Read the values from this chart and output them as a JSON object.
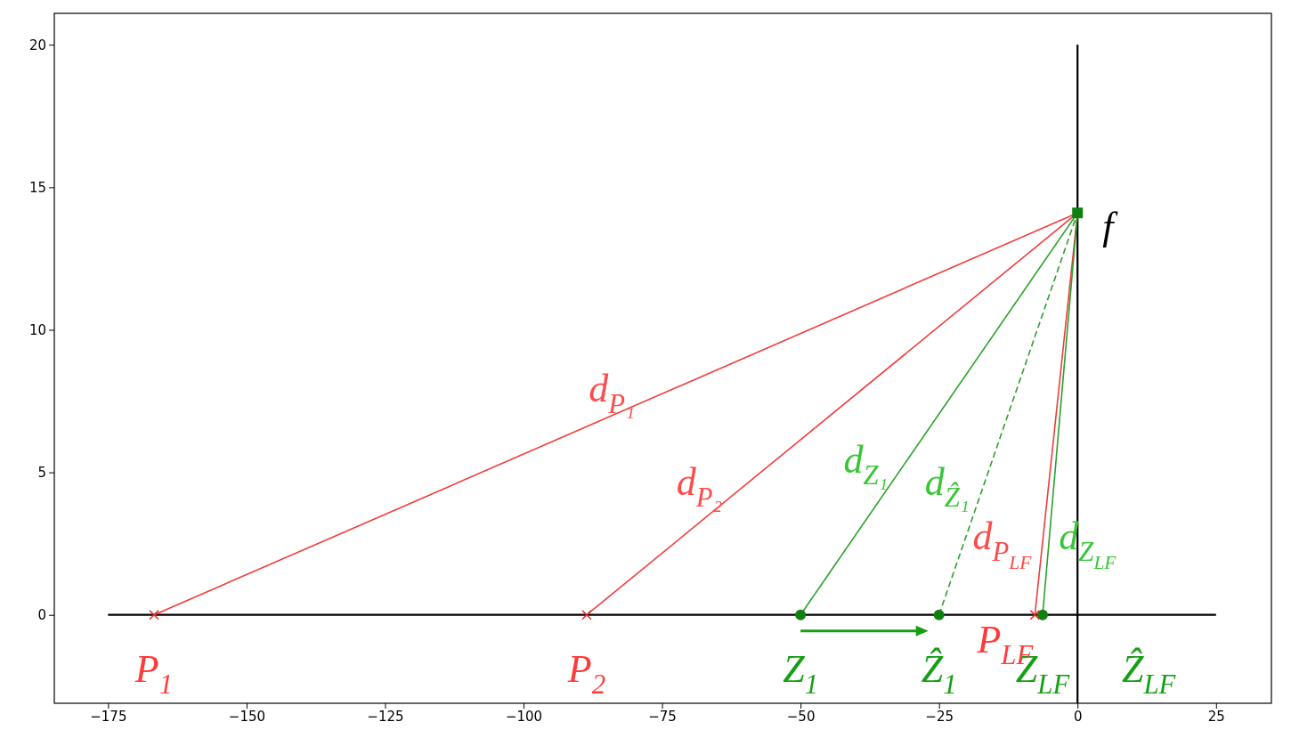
{
  "chart_data": {
    "type": "line",
    "xlim": [
      -184.7,
      35
    ],
    "ylim": [
      -3.1,
      21.1
    ],
    "xticks": [
      {
        "value": -175,
        "label": "−175"
      },
      {
        "value": -150,
        "label": "−150"
      },
      {
        "value": -125,
        "label": "−125"
      },
      {
        "value": -100,
        "label": "−100"
      },
      {
        "value": -75,
        "label": "−75"
      },
      {
        "value": -50,
        "label": "−50"
      },
      {
        "value": -25,
        "label": "−25"
      },
      0,
      25
    ],
    "yticks": [
      0,
      5,
      10,
      15,
      20
    ],
    "grid": false,
    "legend": false,
    "series": [
      {
        "x": [
          -175,
          25
        ],
        "values": [
          0,
          0
        ],
        "color": "#000000"
      },
      {
        "x": [
          0,
          0
        ],
        "values": [
          -3.1,
          20
        ],
        "color": "#000000"
      },
      {
        "x": [
          -166.7,
          0
        ],
        "values": [
          0,
          14.1
        ],
        "color": "#f03c3c"
      },
      {
        "x": [
          -88.6,
          0
        ],
        "values": [
          0,
          14.1
        ],
        "color": "#f03c3c"
      },
      {
        "x": [
          -7.7,
          0
        ],
        "values": [
          0,
          14.1
        ],
        "color": "#f03c3c"
      },
      {
        "x": [
          -50,
          0
        ],
        "values": [
          0,
          14.1
        ],
        "color": "#2ca02c"
      },
      {
        "x": [
          -25,
          0
        ],
        "values": [
          0,
          14.1
        ],
        "color": "#2ca02c",
        "line_style": "dashed"
      },
      {
        "x": [
          -6.3,
          0
        ],
        "values": [
          0,
          14.1
        ],
        "color": "#2ca02c"
      },
      {
        "type": "scatter",
        "name": "Z$_{1}$",
        "x": [
          -50
        ],
        "values": [
          0
        ],
        "color": "#108010",
        "marker": "circle"
      },
      {
        "type": "scatter",
        "name": "Ẑ$_{1}$",
        "x": [
          -25
        ],
        "values": [
          0
        ],
        "color": "#108010",
        "marker": "circle"
      },
      {
        "type": "scatter",
        "name": "Z$_{LF}$",
        "x": [
          -6.3
        ],
        "values": [
          0
        ],
        "color": "#108010",
        "marker": "circle"
      },
      {
        "type": "scatter",
        "name": "P$_{1}$",
        "x": [
          -166.7
        ],
        "values": [
          0
        ],
        "color": "#e03030",
        "marker": "cross"
      },
      {
        "type": "scatter",
        "name": "P$_{2}$",
        "x": [
          -88.6
        ],
        "values": [
          0
        ],
        "color": "#e03030",
        "marker": "cross"
      },
      {
        "type": "scatter",
        "name": "P$_{LF}$",
        "x": [
          -7.7
        ],
        "values": [
          0
        ],
        "color": "#e03030",
        "marker": "cross"
      },
      {
        "type": "scatter",
        "name": "f",
        "x": [
          0
        ],
        "values": [
          14.1
        ],
        "color": "#108010",
        "marker": "square"
      }
    ],
    "annotations": [
      {
        "text": "d$_{P₁}$",
        "x": -78.0,
        "y": 7.5
      },
      {
        "text": "d$_{P₂}$",
        "x": -62.2,
        "y": 4.2
      },
      {
        "text": "d$_{Z₁}$",
        "x": -32.3,
        "y": 5.0
      },
      {
        "text": "d$_{Ẑ₁}$",
        "x": -17.6,
        "y": 4.2
      },
      {
        "text": "d$_{P}$$_{LF}$",
        "x": -6.4,
        "y": 2.3
      },
      {
        "text": "d$_{Z}$$_{LF}$",
        "x": -5.3,
        "y": 2.3
      },
      "Ẑ$_{LF}$"
    ]
  }
}
